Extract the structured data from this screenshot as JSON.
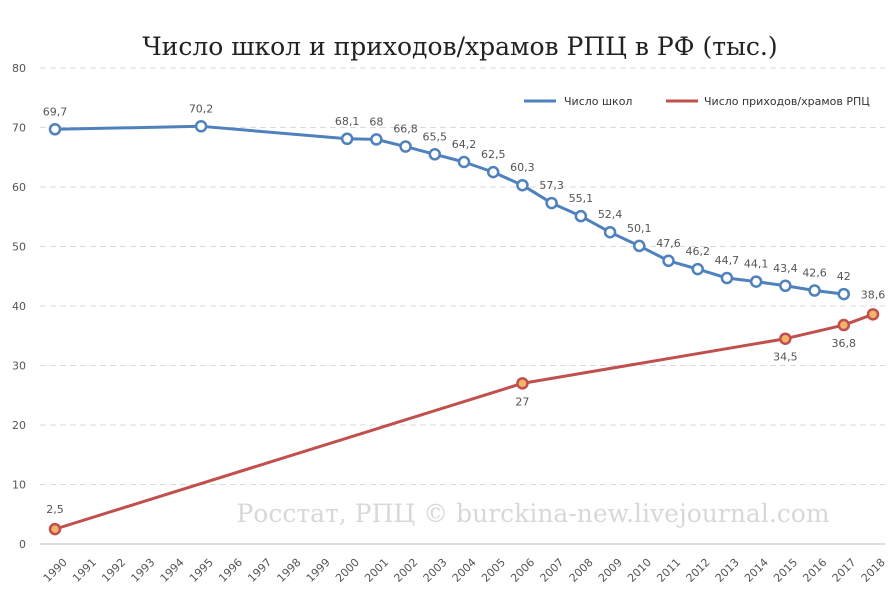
{
  "chart_data": {
    "type": "line",
    "title": "Число школ и приходов/храмов РПЦ в РФ (тыс.)",
    "watermark": "Росстат, РПЦ © burckina-new.livejournal.com",
    "categories": [
      "1990",
      "1991",
      "1992",
      "1993",
      "1994",
      "1995",
      "1996",
      "1997",
      "1998",
      "1999",
      "2000",
      "2001",
      "2002",
      "2003",
      "2004",
      "2005",
      "2006",
      "2007",
      "2008",
      "2009",
      "2010",
      "2011",
      "2012",
      "2013",
      "2014",
      "2015",
      "2016",
      "2017",
      "2018"
    ],
    "ylim": [
      0,
      80
    ],
    "yticks": [
      "0",
      "10",
      "20",
      "30",
      "40",
      "50",
      "60",
      "70",
      "80"
    ],
    "grid": true,
    "legend": "top-right",
    "series": [
      {
        "name": "Число школ",
        "color": "#4f81bd",
        "points": [
          {
            "x": "1990",
            "y": 69.7,
            "label": "69,7"
          },
          {
            "x": "1995",
            "y": 70.2,
            "label": "70,2"
          },
          {
            "x": "2000",
            "y": 68.1,
            "label": "68,1"
          },
          {
            "x": "2001",
            "y": 68,
            "label": "68"
          },
          {
            "x": "2002",
            "y": 66.8,
            "label": "66,8"
          },
          {
            "x": "2003",
            "y": 65.5,
            "label": "65,5"
          },
          {
            "x": "2004",
            "y": 64.2,
            "label": "64,2"
          },
          {
            "x": "2005",
            "y": 62.5,
            "label": "62,5"
          },
          {
            "x": "2006",
            "y": 60.3,
            "label": "60,3"
          },
          {
            "x": "2007",
            "y": 57.3,
            "label": "57,3"
          },
          {
            "x": "2008",
            "y": 55.1,
            "label": "55,1"
          },
          {
            "x": "2009",
            "y": 52.4,
            "label": "52,4"
          },
          {
            "x": "2010",
            "y": 50.1,
            "label": "50,1"
          },
          {
            "x": "2011",
            "y": 47.6,
            "label": "47,6"
          },
          {
            "x": "2012",
            "y": 46.2,
            "label": "46,2"
          },
          {
            "x": "2013",
            "y": 44.7,
            "label": "44,7"
          },
          {
            "x": "2014",
            "y": 44.1,
            "label": "44,1"
          },
          {
            "x": "2015",
            "y": 43.4,
            "label": "43,4"
          },
          {
            "x": "2016",
            "y": 42.6,
            "label": "42,6"
          },
          {
            "x": "2017",
            "y": 42,
            "label": "42"
          }
        ]
      },
      {
        "name": "Число приходов/храмов РПЦ",
        "color": "#c0504d",
        "points": [
          {
            "x": "1990",
            "y": 2.5,
            "label": "2,5"
          },
          {
            "x": "2006",
            "y": 27,
            "label": "27"
          },
          {
            "x": "2015",
            "y": 34.5,
            "label": "34,5"
          },
          {
            "x": "2017",
            "y": 36.8,
            "label": "36,8"
          },
          {
            "x": "2018",
            "y": 38.6,
            "label": "38,6"
          }
        ]
      }
    ]
  }
}
